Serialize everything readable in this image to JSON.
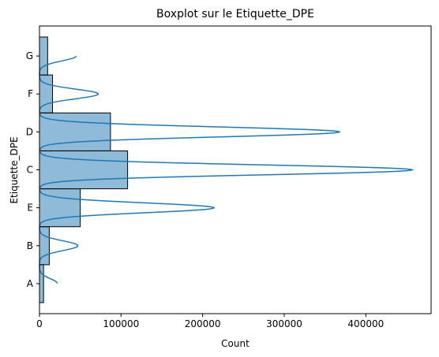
{
  "chart_data": {
    "type": "bar",
    "orientation": "horizontal",
    "title": "Boxplot sur le Etiquette_DPE",
    "xlabel": "Count",
    "ylabel": "Etiquette_DPE",
    "categories": [
      "A",
      "B",
      "E",
      "C",
      "D",
      "F",
      "G"
    ],
    "values": [
      5000,
      12000,
      50000,
      108000,
      87000,
      16000,
      10000
    ],
    "xlim": [
      0,
      480000
    ],
    "x_ticks": [
      0,
      100000,
      200000,
      300000,
      400000
    ],
    "x_tick_labels": [
      "0",
      "100000",
      "200000",
      "300000",
      "400000"
    ],
    "kde_peaks": [
      22000,
      47000,
      214000,
      457000,
      368000,
      72000,
      45000
    ],
    "grid": false,
    "legend": "none",
    "colors": {
      "bar_fill": "#1f77b4",
      "bar_fill_opacity": 0.5,
      "bar_edge": "#000000",
      "kde_line": "#1f77b4"
    }
  }
}
